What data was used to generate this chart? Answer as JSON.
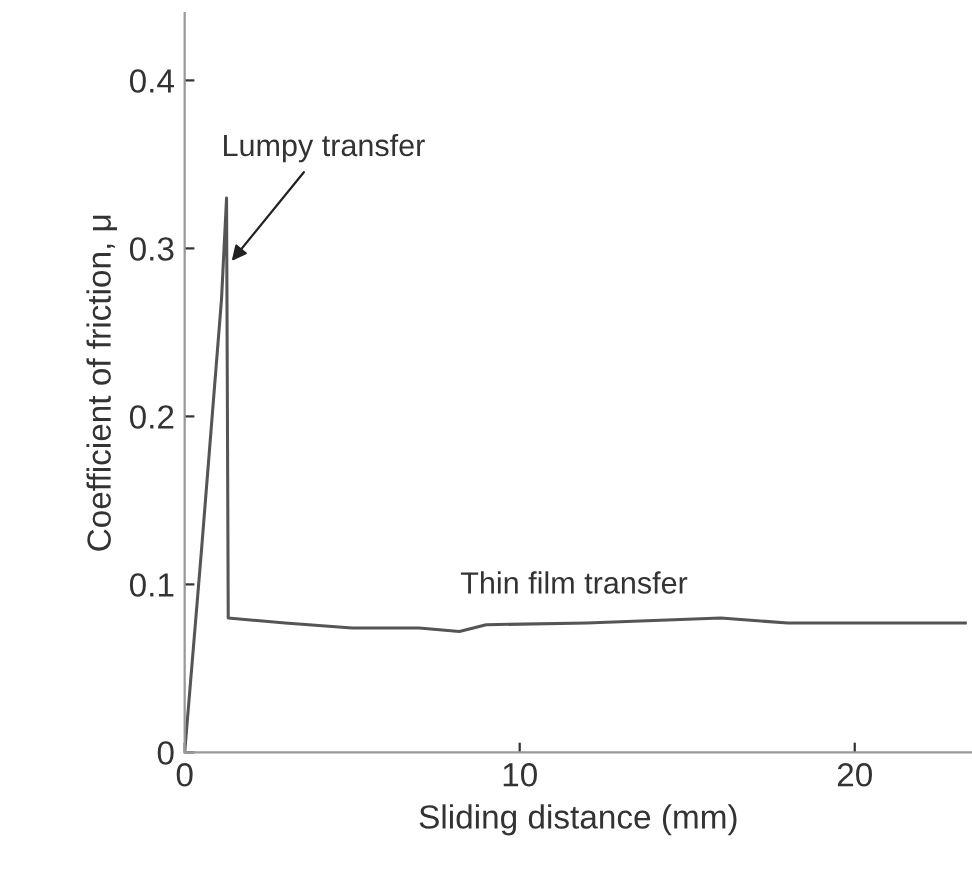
{
  "chart_data": {
    "type": "line",
    "xlabel": "Sliding distance (mm)",
    "ylabel": "Coefficient of friction, μ",
    "x": [
      0,
      0.5,
      1.1,
      1.25,
      1.3,
      3,
      5,
      7,
      8.2,
      9,
      12,
      16,
      18,
      23.3
    ],
    "series": [
      {
        "color": "#555555",
        "values": [
          0,
          0.12,
          0.27,
          0.33,
          0.08,
          0.077,
          0.074,
          0.074,
          0.072,
          0.076,
          0.077,
          0.08,
          0.077,
          0.077
        ]
      }
    ],
    "xlim": [
      0,
      23.5
    ],
    "ylim": [
      0,
      0.44
    ],
    "xticks": [
      0,
      10,
      20
    ],
    "yticks": [
      0,
      0.1,
      0.2,
      0.3,
      0.4
    ],
    "annotations": [
      {
        "text": "Lumpy transfer",
        "x": 1.3,
        "y": 0.29
      },
      "Thin film transfer"
    ],
    "grid": false,
    "legend": false,
    "marker": "none",
    "line_style": "solid"
  }
}
